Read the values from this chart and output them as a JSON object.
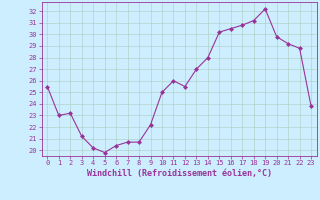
{
  "hours": [
    0,
    1,
    2,
    3,
    4,
    5,
    6,
    7,
    8,
    9,
    10,
    11,
    12,
    13,
    14,
    15,
    16,
    17,
    18,
    19,
    20,
    21,
    22,
    23
  ],
  "values": [
    25.5,
    23.0,
    23.2,
    21.2,
    20.2,
    19.8,
    20.4,
    20.7,
    20.7,
    22.2,
    25.0,
    26.0,
    25.5,
    27.0,
    28.0,
    30.2,
    30.5,
    30.8,
    31.2,
    32.2,
    29.8,
    29.2,
    28.8,
    23.8
  ],
  "line_color": "#993399",
  "marker": "D",
  "marker_size": 2.0,
  "bg_color": "#cceeff",
  "ylabel_ticks": [
    20,
    21,
    22,
    23,
    24,
    25,
    26,
    27,
    28,
    29,
    30,
    31,
    32
  ],
  "ylim": [
    19.5,
    32.8
  ],
  "xlim": [
    -0.5,
    23.5
  ],
  "xlabel": "Windchill (Refroidissement éolien,°C)",
  "grid_color": "#aaccbb",
  "tick_color": "#993399",
  "label_color": "#993399",
  "tick_fontsize": 5.0,
  "label_fontsize": 6.0
}
